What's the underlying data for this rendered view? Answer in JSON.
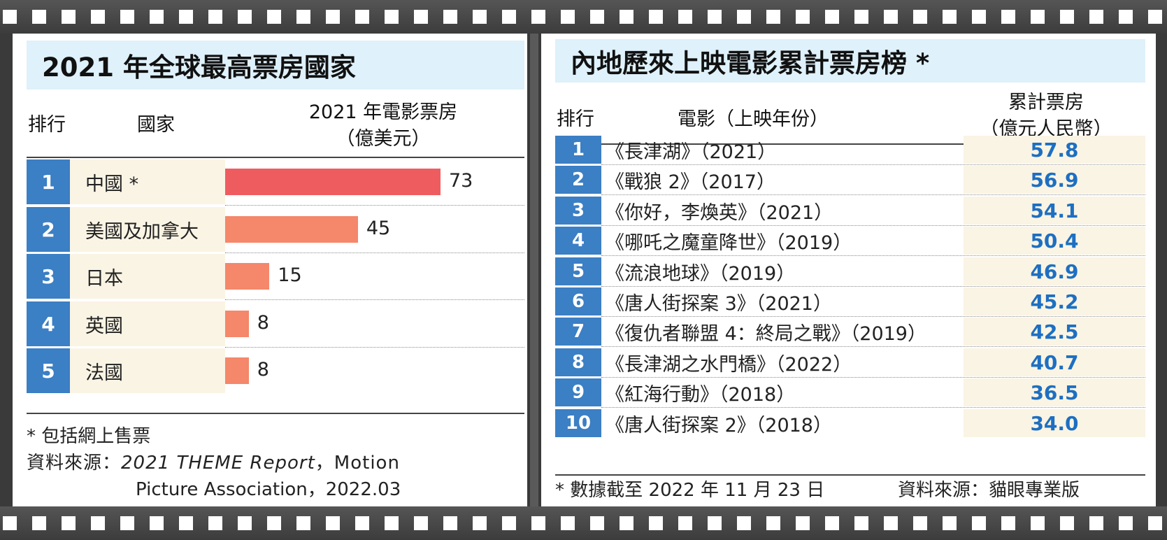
{
  "left": {
    "title": "2021 年全球最高票房國家",
    "header_rank": "排行",
    "header_country": "國家",
    "header_value_line1": "2021 年電影票房",
    "header_value_line2": "（億美元）",
    "note": "* 包括網上售票",
    "source_prefix": "資料來源：",
    "source_report": "2021 THEME Report",
    "source_org": "，Motion",
    "source_line2": "Picture Association，2022.03"
  },
  "chart_data": {
    "type": "bar",
    "orientation": "horizontal",
    "categories": [
      "中國 *",
      "美國及加拿大",
      "日本",
      "英國",
      "法國"
    ],
    "ranks": [
      "1",
      "2",
      "3",
      "4",
      "5"
    ],
    "values": [
      73,
      45,
      15,
      8,
      8
    ],
    "xlim": [
      0,
      73
    ],
    "colors": [
      "#ef5c60",
      "#f5876a",
      "#f5876a",
      "#f5876a",
      "#f5876a"
    ]
  },
  "right": {
    "title": "內地歷來上映電影累計票房榜 *",
    "header_rank": "排行",
    "header_film": "電影（上映年份）",
    "header_total_line1": "累計票房",
    "header_total_line2": "（億元人民幣）",
    "rows": [
      {
        "rank": "1",
        "film": "《長津湖》（2021）",
        "total": "57.8"
      },
      {
        "rank": "2",
        "film": "《戰狼 2》（2017）",
        "total": "56.9"
      },
      {
        "rank": "3",
        "film": "《你好，李煥英》（2021）",
        "total": "54.1"
      },
      {
        "rank": "4",
        "film": "《哪吒之魔童降世》（2019）",
        "total": "50.4"
      },
      {
        "rank": "5",
        "film": "《流浪地球》（2019）",
        "total": "46.9"
      },
      {
        "rank": "6",
        "film": "《唐人街探案 3》（2021）",
        "total": "45.2"
      },
      {
        "rank": "7",
        "film": "《復仇者聯盟 4：終局之戰》（2019）",
        "total": "42.5"
      },
      {
        "rank": "8",
        "film": "《長津湖之水門橋》（2022）",
        "total": "40.7"
      },
      {
        "rank": "9",
        "film": "《紅海行動》（2018）",
        "total": "36.5"
      },
      {
        "rank": "10",
        "film": "《唐人街探案 2》（2018）",
        "total": "34.0"
      }
    ],
    "note": "* 數據截至 2022 年 11 月 23 日",
    "source": "資料來源：貓眼專業版"
  },
  "colors": {
    "rank_blue": "#3b7fc4",
    "value_blue": "#1d6fc2",
    "title_bg": "#dff1fa",
    "cell_bg": "#faf4e4"
  }
}
